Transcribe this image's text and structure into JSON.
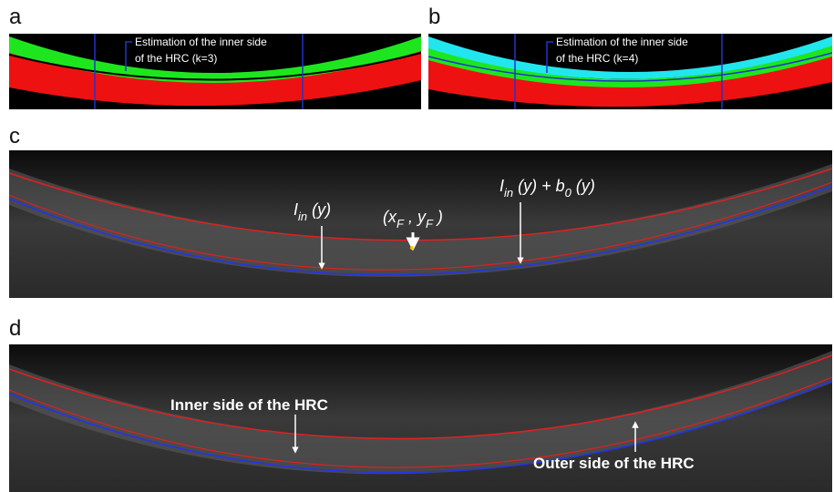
{
  "panels": [
    {
      "label": "a",
      "annotation": [
        "Estimation of the inner side",
        "of the HRC  (k=3)"
      ]
    },
    {
      "label": "b",
      "annotation": [
        "Estimation of the inner side",
        "of the HRC  (k=4)"
      ]
    },
    {
      "label": "c",
      "formulas": [
        [
          "I",
          "in",
          " (y)"
        ],
        [
          "(x",
          "F",
          " , y",
          "F",
          " )"
        ],
        [
          "I",
          "in",
          " (y) + b",
          "0",
          " (y)"
        ]
      ]
    },
    {
      "label": "d",
      "annotations": [
        "Inner side of the HRC",
        "Outer side of the HRC"
      ]
    }
  ]
}
